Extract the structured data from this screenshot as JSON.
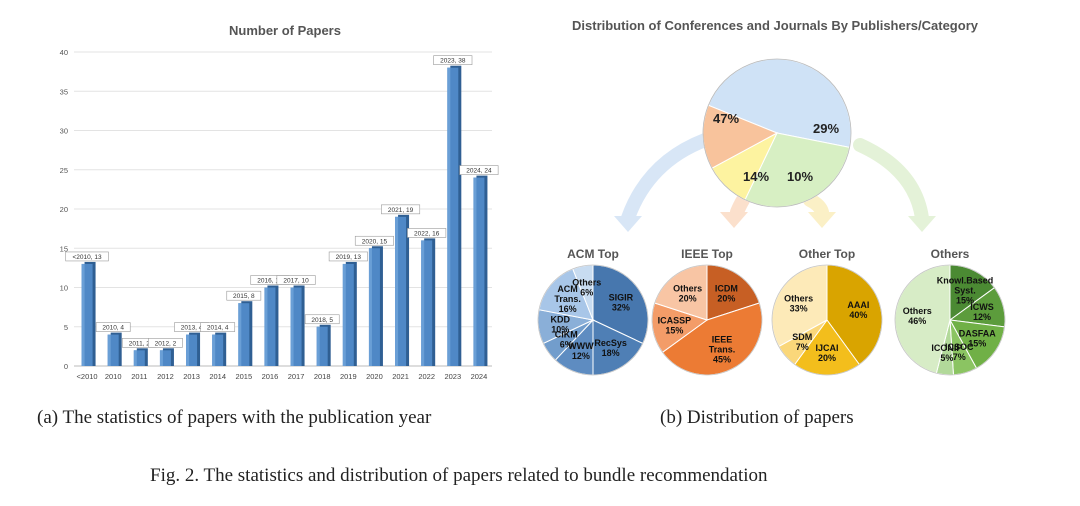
{
  "chart_data": [
    {
      "type": "bar",
      "title": "Number of Papers",
      "categories": [
        "<2010",
        "2010",
        "2011",
        "2012",
        "2013",
        "2014",
        "2015",
        "2016",
        "2017",
        "2018",
        "2019",
        "2020",
        "2021",
        "2022",
        "2023",
        "2024"
      ],
      "values": [
        13,
        4,
        2,
        2,
        4,
        4,
        8,
        10,
        10,
        5,
        13,
        15,
        19,
        16,
        38,
        24
      ],
      "data_labels": [
        "<2010, 13",
        "2010, 4",
        "2011, 2",
        "2012, 2",
        "2013, 4",
        "2014, 4",
        "2015, 8",
        "2016, 10",
        "2017, 10",
        "2018, 5",
        "2019, 13",
        "2020, 15",
        "2021, 19",
        "2022, 16",
        "2023, 38",
        "2024, 24"
      ],
      "ylim": [
        0,
        40
      ],
      "yticks": [
        0,
        5,
        10,
        15,
        20,
        25,
        30,
        35,
        40
      ],
      "grid": true,
      "bar_color": "#4f88c6"
    },
    {
      "type": "pie",
      "title": "Distribution of Conferences and Journals By Publishers/Category",
      "main": {
        "slices": [
          {
            "label": "47%",
            "value": 47,
            "color": "#cfe2f6"
          },
          {
            "label": "29%",
            "value": 29,
            "color": "#d7efc3"
          },
          {
            "label": "10%",
            "value": 10,
            "color": "#fdf3a0"
          },
          {
            "label": "14%",
            "value": 14,
            "color": "#f8c39c"
          }
        ]
      },
      "subcharts": [
        {
          "title": "ACM Top",
          "slices": [
            {
              "name": "SIGIR",
              "pct": "32%",
              "value": 32,
              "color": "#4777ae"
            },
            {
              "name": "RecSys",
              "pct": "18%",
              "value": 18,
              "color": "#4f7fb5"
            },
            {
              "name": "WWW",
              "pct": "12%",
              "value": 12,
              "color": "#5e8cc1"
            },
            {
              "name": "CIKM",
              "pct": "6%",
              "value": 6,
              "color": "#729dcc"
            },
            {
              "name": "KDD",
              "pct": "10%",
              "value": 10,
              "color": "#8aafd8"
            },
            {
              "name": "ACM Trans.",
              "pct": "16%",
              "value": 16,
              "color": "#a8c6e8"
            },
            {
              "name": "Others",
              "pct": "6%",
              "value": 6,
              "color": "#c8dcf1"
            }
          ]
        },
        {
          "title": "IEEE Top",
          "slices": [
            {
              "name": "ICDM",
              "pct": "20%",
              "value": 20,
              "color": "#c75f24"
            },
            {
              "name": "IEEE Trans.",
              "pct": "45%",
              "value": 45,
              "color": "#ec7b34"
            },
            {
              "name": "ICASSP",
              "pct": "15%",
              "value": 15,
              "color": "#f39c68"
            },
            {
              "name": "Others",
              "pct": "20%",
              "value": 20,
              "color": "#f8c5a4"
            }
          ]
        },
        {
          "title": "Other Top",
          "slices": [
            {
              "name": "AAAI",
              "pct": "40%",
              "value": 40,
              "color": "#d9a400"
            },
            {
              "name": "IJCAI",
              "pct": "20%",
              "value": 20,
              "color": "#f3be1c"
            },
            {
              "name": "SDM",
              "pct": "7%",
              "value": 7,
              "color": "#fad77a"
            },
            {
              "name": "Others",
              "pct": "33%",
              "value": 33,
              "color": "#fdeab8"
            }
          ]
        },
        {
          "title": "Others",
          "slices": [
            {
              "name": "Knowl.Based Syst.",
              "pct": "15%",
              "value": 15,
              "color": "#4b8a33"
            },
            {
              "name": "ICWS",
              "pct": "12%",
              "value": 12,
              "color": "#5c9c3c"
            },
            {
              "name": "DASFAA",
              "pct": "15%",
              "value": 15,
              "color": "#70b046"
            },
            {
              "name": "ICSOC",
              "pct": "7%",
              "value": 7,
              "color": "#8bc462"
            },
            {
              "name": "ICONIP",
              "pct": "5%",
              "value": 5,
              "color": "#b2d99a"
            },
            {
              "name": "Others",
              "pct": "46%",
              "value": 46,
              "color": "#d7ecc6"
            }
          ]
        }
      ]
    }
  ],
  "captions": {
    "a": "(a) The statistics of papers with the publication year",
    "b": "(b) Distribution of papers",
    "figure": "Fig. 2.  The statistics and distribution of papers related to bundle recommendation"
  }
}
